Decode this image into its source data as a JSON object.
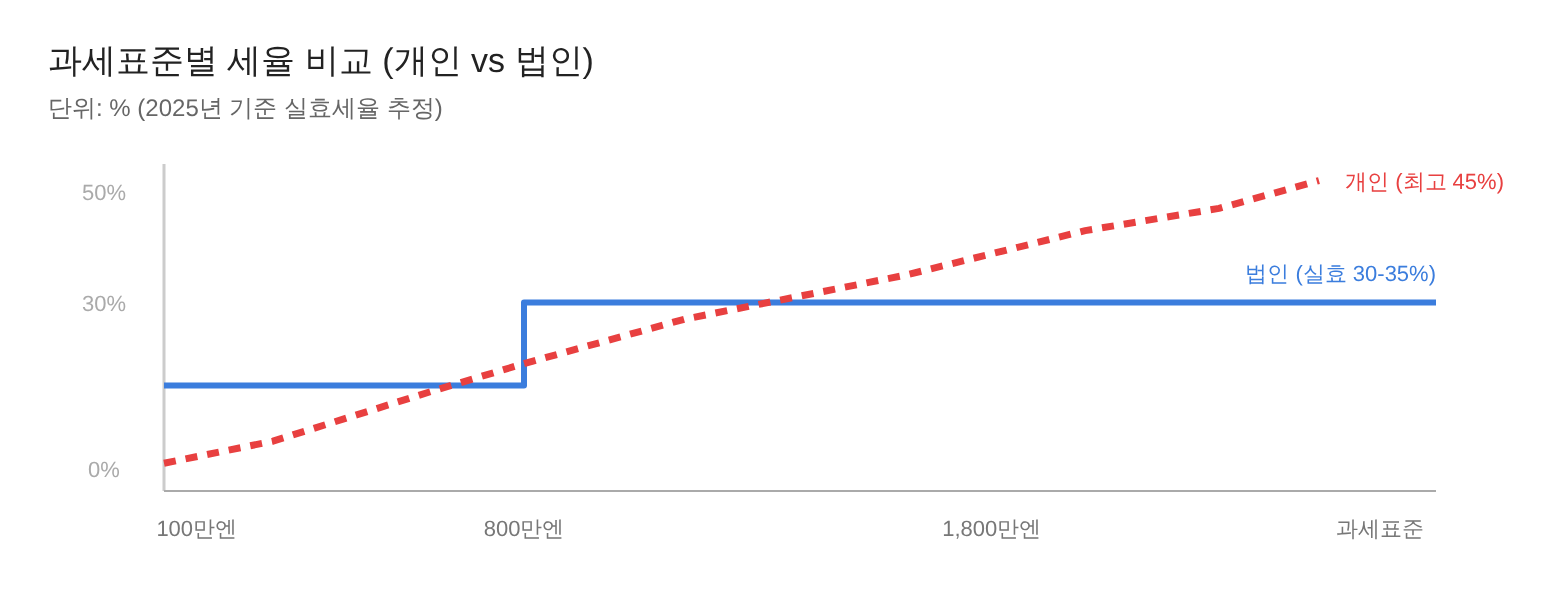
{
  "chart_data": {
    "type": "line",
    "title": "과세표준별 세율 비교 (개인 vs 법인)",
    "subtitle": "단위: % (2025년 기준 실효세율 추정)",
    "xlabel": "과세표준",
    "xlim": [
      30,
      2750
    ],
    "ylim": [
      -4,
      55
    ],
    "xticks": [
      {
        "value": 100,
        "label": "100만엔"
      },
      {
        "value": 800,
        "label": "800만엔"
      },
      {
        "value": 1800,
        "label": "1,800만엔"
      }
    ],
    "yticks": [
      {
        "value": 0,
        "label": "0%"
      },
      {
        "value": 30,
        "label": "30%"
      },
      {
        "value": 50,
        "label": "50%"
      }
    ],
    "grid": false,
    "series": [
      {
        "name": "법인 (실효 30-35%)",
        "type": "step",
        "color": "#3b7ddd",
        "line_style": "solid",
        "x": [
          30,
          800,
          2750
        ],
        "values": [
          15,
          30,
          30
        ]
      },
      {
        "name": "개인 (최고 45%)",
        "type": "line",
        "color": "#e84040",
        "line_style": "dashed",
        "x": [
          30,
          263,
          603,
          800,
          1143,
          1619,
          2000,
          2286,
          2500
        ],
        "values": [
          1,
          5,
          14,
          19,
          27,
          35,
          43,
          47,
          52
        ]
      }
    ]
  }
}
